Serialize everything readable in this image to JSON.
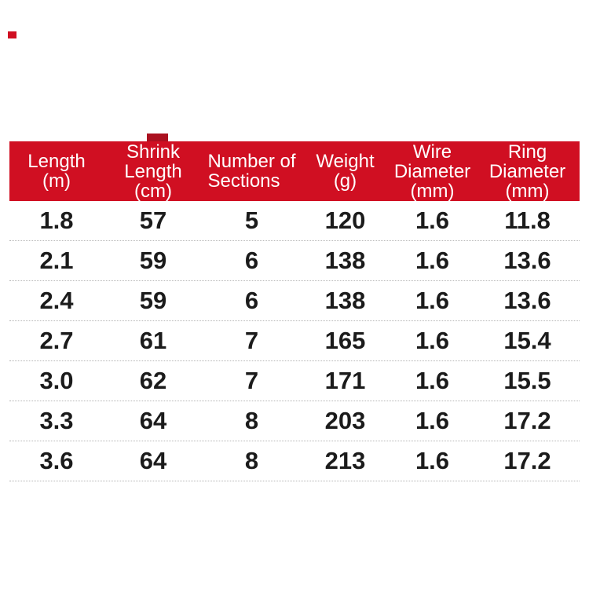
{
  "colors": {
    "header_red": "#d00f22",
    "watermark_red": "#ab1120",
    "divider_gray": "#b5b5b5",
    "row_text": "#1b1b1b",
    "header_text": "#ffffff",
    "background": "#ffffff"
  },
  "decorations": {
    "corner_mark": "small-red-dash",
    "watermark_fragment": "small-red-fragment-above-header"
  },
  "table": {
    "columns": [
      {
        "id": "length",
        "label": "Length (m)",
        "header_lines": [
          "Length",
          "(m)"
        ]
      },
      {
        "id": "shrink-length",
        "label": "Shrink Length (cm)",
        "header_lines": [
          "Shrink",
          "Length",
          "(cm)"
        ]
      },
      {
        "id": "sections",
        "label": "Number of Sections",
        "header_lines": [
          "Number of",
          "Sections"
        ]
      },
      {
        "id": "weight",
        "label": "Weight (g)",
        "header_lines": [
          "Weight",
          "(g)"
        ]
      },
      {
        "id": "wire-diameter",
        "label": "Wire Diameter (mm)",
        "header_lines": [
          "Wire",
          "Diameter",
          "(mm)"
        ]
      },
      {
        "id": "ring-diameter",
        "label": "Ring Diameter (mm)",
        "header_lines": [
          "Ring",
          "Diameter",
          "(mm)"
        ]
      }
    ],
    "rows": [
      [
        "1.8",
        "57",
        "5",
        "120",
        "1.6",
        "11.8"
      ],
      [
        "2.1",
        "59",
        "6",
        "138",
        "1.6",
        "13.6"
      ],
      [
        "2.4",
        "59",
        "6",
        "138",
        "1.6",
        "13.6"
      ],
      [
        "2.7",
        "61",
        "7",
        "165",
        "1.6",
        "15.4"
      ],
      [
        "3.0",
        "62",
        "7",
        "171",
        "1.6",
        "15.5"
      ],
      [
        "3.3",
        "64",
        "8",
        "203",
        "1.6",
        "17.2"
      ],
      [
        "3.6",
        "64",
        "8",
        "213",
        "1.6",
        "17.2"
      ]
    ]
  },
  "chart_data": {
    "type": "table",
    "title": "",
    "columns": [
      "Length (m)",
      "Shrink Length (cm)",
      "Number of Sections",
      "Weight (g)",
      "Wire Diameter (mm)",
      "Ring Diameter (mm)"
    ],
    "rows": [
      [
        1.8,
        57,
        5,
        120,
        1.6,
        11.8
      ],
      [
        2.1,
        59,
        6,
        138,
        1.6,
        13.6
      ],
      [
        2.4,
        59,
        6,
        138,
        1.6,
        13.6
      ],
      [
        2.7,
        61,
        7,
        165,
        1.6,
        15.4
      ],
      [
        3.0,
        62,
        7,
        171,
        1.6,
        15.5
      ],
      [
        3.3,
        64,
        8,
        203,
        1.6,
        17.2
      ],
      [
        3.6,
        64,
        8,
        213,
        1.6,
        17.2
      ]
    ]
  }
}
